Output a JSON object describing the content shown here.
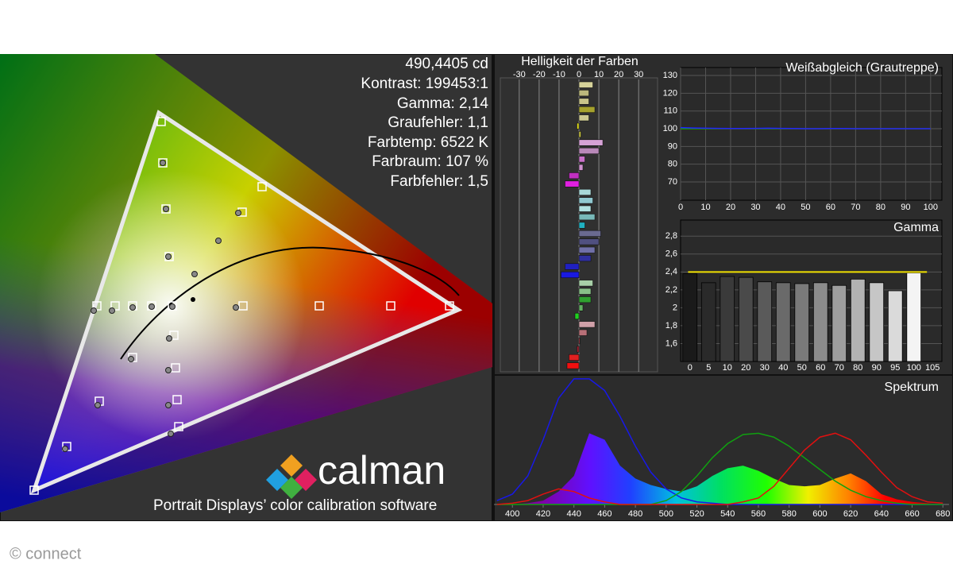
{
  "stats": [
    "490,4405 cd",
    "Kontrast: 199453:1",
    "Gamma: 2,14",
    "Graufehler: 1,1",
    "Farbtemp: 6522 K",
    "Farbraum: 107 %",
    "Farbfehler: 1,5"
  ],
  "logo": {
    "name": "calman",
    "tagline": "Portrait Displays’ color calibration software"
  },
  "credit": "© connect",
  "chart_data": [
    {
      "type": "barh",
      "title": "Helligkeit der Farben",
      "values": [
        7,
        5,
        5,
        8,
        5,
        -1,
        1,
        12,
        10,
        3,
        2,
        -5,
        -7,
        6,
        7,
        6,
        8,
        3,
        11,
        10,
        8,
        6,
        -7,
        -9,
        7,
        6,
        6,
        2,
        -2,
        8,
        4,
        0.5,
        -1,
        -5,
        -6
      ],
      "colors": [
        "#d6d29a",
        "#bcb87c",
        "#c8c48a",
        "#a6a22e",
        "#ccc890",
        "#e4e01a",
        "#c8c440",
        "#d6a2d6",
        "#b888b8",
        "#c870c8",
        "#d090d0",
        "#c030c0",
        "#e020e0",
        "#a8d8d8",
        "#90c8d0",
        "#b0e0e0",
        "#78b8b8",
        "#20b0c0",
        "#6a6a90",
        "#505080",
        "#7070a8",
        "#3030a0",
        "#2020c0",
        "#1a1ae0",
        "#a8d0a8",
        "#88c088",
        "#30a030",
        "#60b060",
        "#20d020",
        "#d0a0a8",
        "#b87078",
        "#c04050",
        "#a02030",
        "#e02020",
        "#f01010"
      ],
      "xlim": [
        -39.5,
        39.5
      ],
      "xticks": [
        -30,
        -20,
        -10,
        0,
        10,
        20,
        30
      ],
      "grid": true
    },
    {
      "type": "line",
      "title": "Weißabgleich (Grautreppe)",
      "x": [
        0,
        5,
        10,
        15,
        20,
        25,
        30,
        35,
        40,
        45,
        50,
        55,
        60,
        65,
        70,
        75,
        80,
        85,
        90,
        95,
        100
      ],
      "series": [
        {
          "color": "#e00000",
          "values": [
            100,
            100,
            100,
            100,
            100,
            100,
            100,
            100,
            100,
            100,
            100,
            100,
            100,
            100,
            100,
            100,
            100,
            100,
            100,
            100,
            100
          ]
        },
        {
          "color": "#00b000",
          "values": [
            100,
            100,
            100,
            100,
            100,
            100,
            100,
            100,
            100,
            100,
            100,
            100,
            100,
            100,
            100,
            100,
            100,
            100,
            100,
            100,
            100
          ]
        },
        {
          "color": "#2020ff",
          "values": [
            100.6,
            100.4,
            100.3,
            100.2,
            100.1,
            100.1,
            100.2,
            100.3,
            100.2,
            100.1,
            100,
            100,
            100.1,
            100.1,
            100,
            100,
            100,
            100,
            100,
            100,
            100
          ]
        }
      ],
      "xlim": [
        0,
        104.5
      ],
      "ylim": [
        59.7,
        134.5
      ],
      "xticks": [
        0,
        10,
        20,
        30,
        40,
        50,
        60,
        70,
        80,
        90,
        100
      ],
      "yticks": [
        70,
        80,
        90,
        100,
        110,
        120,
        130
      ],
      "grid": true
    },
    {
      "type": "bar",
      "title": "Gamma",
      "categories": [
        "0",
        "5",
        "10",
        "20",
        "30",
        "40",
        "50",
        "60",
        "70",
        "80",
        "90",
        "95",
        "100",
        "105"
      ],
      "values": [
        2.38,
        2.28,
        2.35,
        2.34,
        2.29,
        2.28,
        2.27,
        2.28,
        2.25,
        2.32,
        2.28,
        2.19,
        2.39,
        null
      ],
      "colors": [
        "#1a1a1a",
        "#2a2a2a",
        "#3a3a3a",
        "#4a4a4a",
        "#5a5a5a",
        "#6a6a6a",
        "#7a7a7a",
        "#8c8c8c",
        "#9e9e9e",
        "#b2b2b2",
        "#c6c6c6",
        "#dadada",
        "#f4f4f4",
        null
      ],
      "target": 2.4,
      "target_color": "#f0e000",
      "ylim": [
        1.4,
        2.98
      ],
      "yticks": [
        {
          "value": 1.6,
          "label": "1,6"
        },
        {
          "value": 1.8,
          "label": "1,8"
        },
        {
          "value": 2,
          "label": "2"
        },
        {
          "value": 2.2,
          "label": "2,2"
        },
        {
          "value": 2.4,
          "label": "2,4"
        },
        {
          "value": 2.6,
          "label": "2,6"
        },
        {
          "value": 2.8,
          "label": "2,8"
        }
      ],
      "grid": true
    },
    {
      "type": "area",
      "title": "Spektrum",
      "x": [
        390,
        400,
        410,
        420,
        430,
        440,
        450,
        460,
        470,
        480,
        490,
        500,
        510,
        520,
        530,
        540,
        550,
        560,
        570,
        580,
        590,
        600,
        610,
        620,
        630,
        640,
        650,
        660,
        670,
        680
      ],
      "series": [
        {
          "fill": true,
          "values": [
            0,
            0,
            1,
            3,
            10,
            22,
            55,
            50,
            30,
            20,
            15,
            12,
            10,
            14,
            22,
            28,
            30,
            26,
            20,
            15,
            14,
            15,
            20,
            24,
            18,
            8,
            4,
            2,
            1,
            0
          ]
        },
        {
          "color": "#1818e8",
          "values": [
            3,
            8,
            22,
            50,
            82,
            97,
            97,
            88,
            68,
            45,
            25,
            12,
            5,
            2,
            1,
            0,
            0,
            0,
            0,
            0,
            0,
            0,
            0,
            0,
            0,
            0,
            0,
            0,
            0,
            0
          ]
        },
        {
          "color": "#10a010",
          "values": [
            0,
            0,
            0,
            0,
            0,
            0,
            0,
            0,
            0,
            0,
            0,
            3,
            10,
            22,
            36,
            47,
            54,
            55,
            52,
            45,
            36,
            27,
            18,
            11,
            6,
            3,
            1,
            0,
            0,
            0
          ]
        },
        {
          "color": "#e01010",
          "values": [
            0,
            1,
            3,
            8,
            12,
            10,
            5,
            2,
            0,
            0,
            0,
            0,
            0,
            0,
            0,
            0,
            2,
            5,
            14,
            28,
            42,
            52,
            55,
            50,
            38,
            25,
            13,
            6,
            2,
            1
          ]
        }
      ],
      "xlim": [
        388,
        684
      ],
      "ylim": [
        0,
        100
      ],
      "xticks": [
        400,
        420,
        440,
        460,
        480,
        500,
        520,
        540,
        560,
        580,
        600,
        620,
        640,
        660,
        680
      ]
    }
  ]
}
